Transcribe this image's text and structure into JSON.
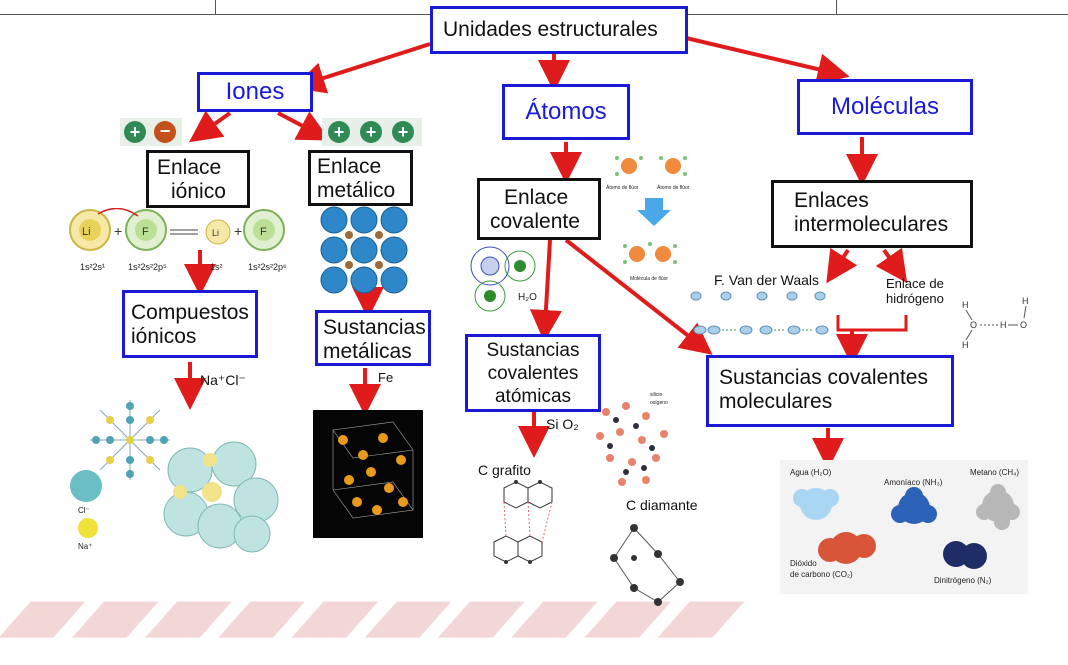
{
  "colors": {
    "arrow": "#e01b1b",
    "box_blue": "#1a1ad6",
    "box_black": "#111111",
    "watermark": "#f3d7d7"
  },
  "nodes": {
    "root": "Unidades estructurales",
    "iones": "Iones",
    "atomos": "Átomos",
    "moleculas": "Moléculas",
    "enlace_ionico": [
      "Enlace",
      "iónico"
    ],
    "enlace_metalico": [
      "Enlace",
      "metálico"
    ],
    "enlace_covalente": [
      "Enlace",
      "covalente"
    ],
    "enlaces_intermoleculares": [
      "Enlaces",
      "intermoleculares"
    ],
    "compuestos_ionicos": [
      "Compuestos",
      "iónicos"
    ],
    "sustancias_metalicas": [
      "Sustancias",
      "metálicas"
    ],
    "sustancias_covalentes_atomicas": [
      "Sustancias",
      "covalentes",
      "atómicas"
    ],
    "sustancias_covalentes_moleculares": [
      "Sustancias covalentes",
      "moleculares"
    ]
  },
  "labels": {
    "nacl": "Na⁺Cl⁻",
    "fe": "Fe",
    "sio2": "Si O₂",
    "c_grafito": "C grafito",
    "c_diamante": "C diamante",
    "van_der_waals": "F. Van der Waals",
    "enlace_hidrogeno": [
      "Enlace de",
      "hidrógeno"
    ],
    "config_li": "1s²2s¹",
    "config_f": "1s²2s²2p⁵",
    "config_li_ion": "1s²",
    "config_f_ion": "1s²2s²2p⁶",
    "li": "Li",
    "f": "F",
    "h2o": "H₂O",
    "cl_minus": "Cl⁻",
    "na_plus": "Na⁺",
    "atomo_fluor_1": "Átomo de flúor",
    "atomo_fluor_2": "Átomo de flúor",
    "molecula_fluor": "Molécula de flúor",
    "silicio": "silicio",
    "oxigeno": "oxígeno"
  },
  "molecules": {
    "agua": "Agua (H₂O)",
    "amoniaco": "Amoníaco (NH₃)",
    "metano": "Metano (CH₄)",
    "dioxido": [
      "Dióxido",
      "de carbono (CO₂)"
    ],
    "dinitrogeno": "Dinitrógeno (N₂)"
  }
}
